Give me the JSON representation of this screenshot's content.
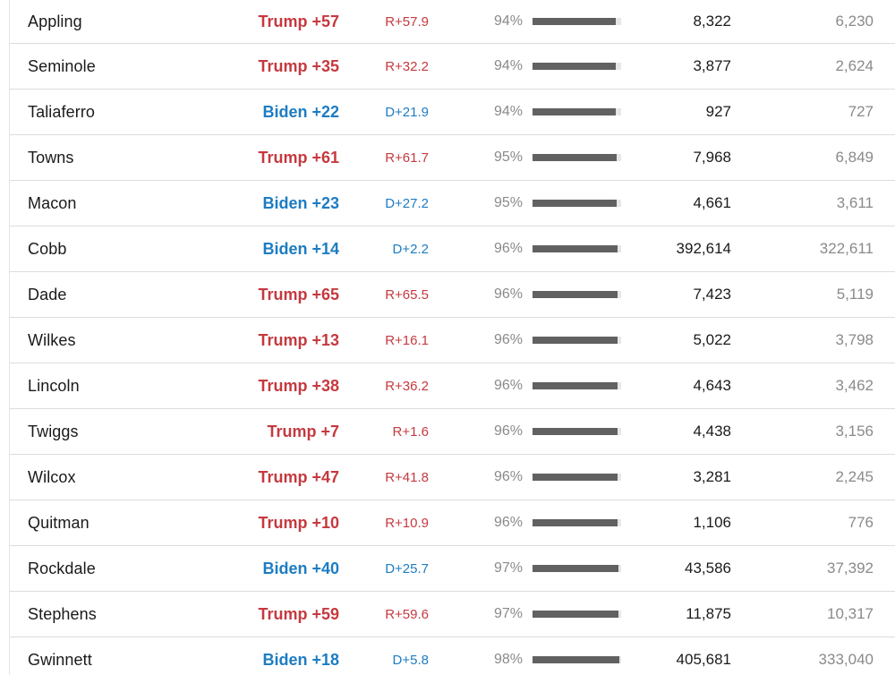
{
  "colors": {
    "republican": "#c5393f",
    "democrat": "#1d7cc2",
    "bar_fill": "#616161",
    "bar_track": "#e7e7e7",
    "row_divider": "#dcdcdc"
  },
  "table": {
    "rows": [
      {
        "county": "Appling",
        "party": "rep",
        "margin": "Trump +57",
        "change": "R+57.9",
        "pct": "94%",
        "pct_value": 94,
        "votes": "8,322",
        "votes2": "6,230"
      },
      {
        "county": "Seminole",
        "party": "rep",
        "margin": "Trump +35",
        "change": "R+32.2",
        "pct": "94%",
        "pct_value": 94,
        "votes": "3,877",
        "votes2": "2,624"
      },
      {
        "county": "Taliaferro",
        "party": "dem",
        "margin": "Biden +22",
        "change": "D+21.9",
        "pct": "94%",
        "pct_value": 94,
        "votes": "927",
        "votes2": "727"
      },
      {
        "county": "Towns",
        "party": "rep",
        "margin": "Trump +61",
        "change": "R+61.7",
        "pct": "95%",
        "pct_value": 95,
        "votes": "7,968",
        "votes2": "6,849"
      },
      {
        "county": "Macon",
        "party": "dem",
        "margin": "Biden +23",
        "change": "D+27.2",
        "pct": "95%",
        "pct_value": 95,
        "votes": "4,661",
        "votes2": "3,611"
      },
      {
        "county": "Cobb",
        "party": "dem",
        "margin": "Biden +14",
        "change": "D+2.2",
        "pct": "96%",
        "pct_value": 96,
        "votes": "392,614",
        "votes2": "322,611"
      },
      {
        "county": "Dade",
        "party": "rep",
        "margin": "Trump +65",
        "change": "R+65.5",
        "pct": "96%",
        "pct_value": 96,
        "votes": "7,423",
        "votes2": "5,119"
      },
      {
        "county": "Wilkes",
        "party": "rep",
        "margin": "Trump +13",
        "change": "R+16.1",
        "pct": "96%",
        "pct_value": 96,
        "votes": "5,022",
        "votes2": "3,798"
      },
      {
        "county": "Lincoln",
        "party": "rep",
        "margin": "Trump +38",
        "change": "R+36.2",
        "pct": "96%",
        "pct_value": 96,
        "votes": "4,643",
        "votes2": "3,462"
      },
      {
        "county": "Twiggs",
        "party": "rep",
        "margin": "Trump +7",
        "change": "R+1.6",
        "pct": "96%",
        "pct_value": 96,
        "votes": "4,438",
        "votes2": "3,156"
      },
      {
        "county": "Wilcox",
        "party": "rep",
        "margin": "Trump +47",
        "change": "R+41.8",
        "pct": "96%",
        "pct_value": 96,
        "votes": "3,281",
        "votes2": "2,245"
      },
      {
        "county": "Quitman",
        "party": "rep",
        "margin": "Trump +10",
        "change": "R+10.9",
        "pct": "96%",
        "pct_value": 96,
        "votes": "1,106",
        "votes2": "776"
      },
      {
        "county": "Rockdale",
        "party": "dem",
        "margin": "Biden +40",
        "change": "D+25.7",
        "pct": "97%",
        "pct_value": 97,
        "votes": "43,586",
        "votes2": "37,392"
      },
      {
        "county": "Stephens",
        "party": "rep",
        "margin": "Trump +59",
        "change": "R+59.6",
        "pct": "97%",
        "pct_value": 97,
        "votes": "11,875",
        "votes2": "10,317"
      },
      {
        "county": "Gwinnett",
        "party": "dem",
        "margin": "Biden +18",
        "change": "D+5.8",
        "pct": "98%",
        "pct_value": 98,
        "votes": "405,681",
        "votes2": "333,040"
      }
    ]
  }
}
